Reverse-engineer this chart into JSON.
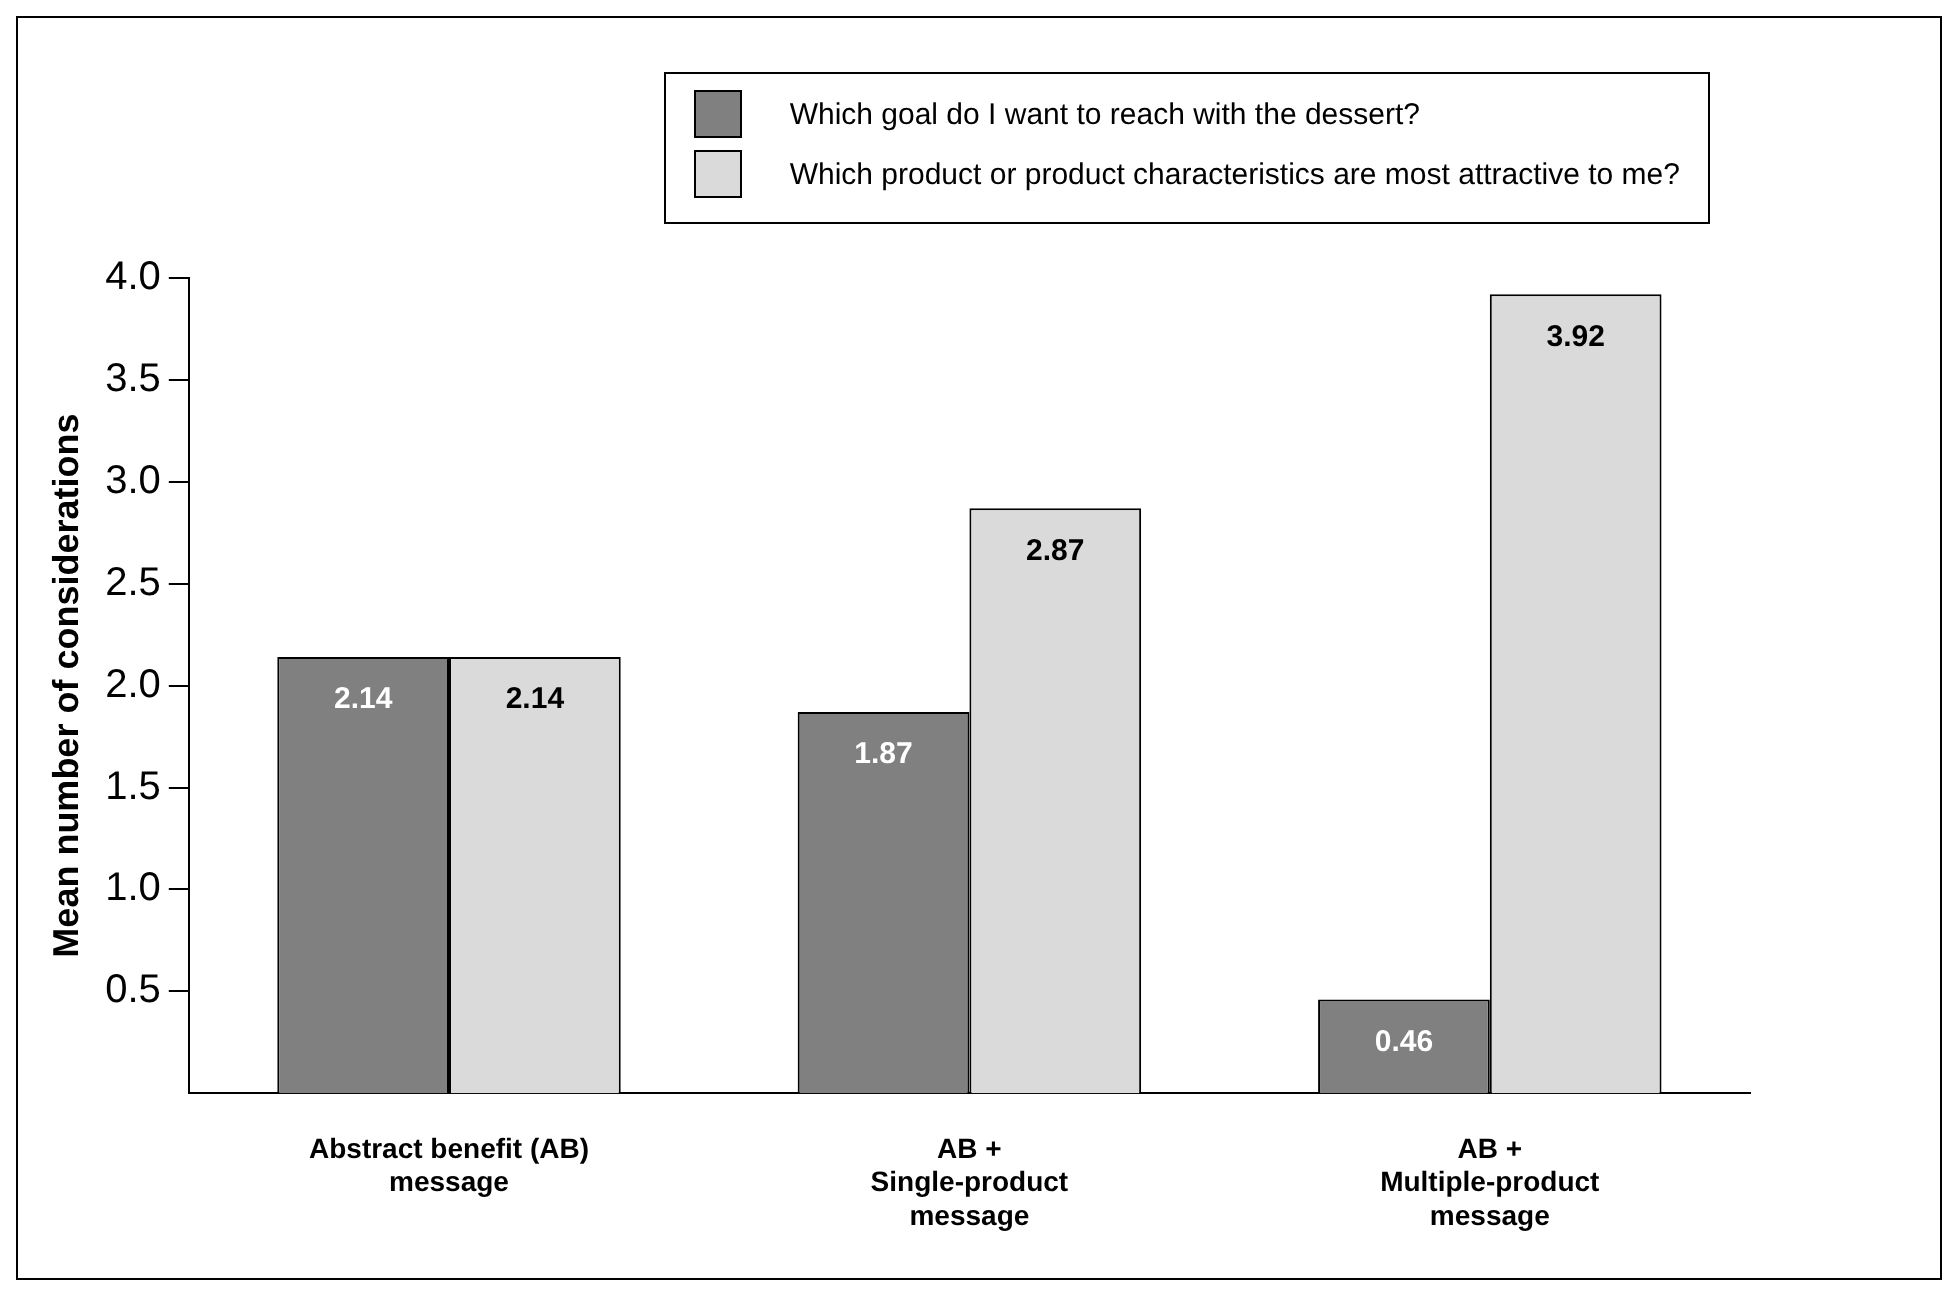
{
  "chart_data": {
    "type": "bar",
    "ylabel": "Mean number of considerations",
    "categories": [
      "Abstract benefit (AB)\nmessage",
      "AB +\nSingle-product\nmessage",
      "AB +\nMultiple-product\nmessage"
    ],
    "series": [
      {
        "name": "Which goal do I want to reach with the dessert?",
        "color": "#808080",
        "values": [
          2.14,
          1.87,
          0.46
        ]
      },
      {
        "name": "Which product or product characteristics are most attractive to me?",
        "color": "#dadada",
        "values": [
          2.14,
          2.87,
          3.92
        ]
      }
    ],
    "ylim": [
      0,
      4.0
    ],
    "yticks": [
      {
        "value": 0.5,
        "label": "0.5"
      },
      {
        "value": 1.0,
        "label": "1.0"
      },
      {
        "value": 1.5,
        "label": "1.5"
      },
      {
        "value": 2.0,
        "label": "2.0"
      },
      {
        "value": 2.5,
        "label": "2.5"
      },
      {
        "value": 3.0,
        "label": "3.0"
      },
      {
        "value": 3.5,
        "label": "3.5"
      },
      {
        "value": 4.0,
        "label": "4.0"
      }
    ],
    "grid": false,
    "legend": "top right",
    "data_labels": true
  }
}
